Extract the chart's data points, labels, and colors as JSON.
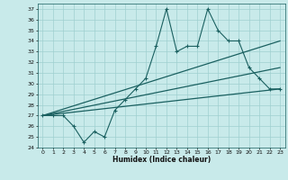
{
  "xlabel": "Humidex (Indice chaleur)",
  "bg_color": "#c8eaea",
  "grid_color": "#9fcfcf",
  "line_color": "#1a6060",
  "xlim": [
    -0.5,
    23.5
  ],
  "ylim": [
    24,
    37.5
  ],
  "yticks": [
    24,
    25,
    26,
    27,
    28,
    29,
    30,
    31,
    32,
    33,
    34,
    35,
    36,
    37
  ],
  "xticks": [
    0,
    1,
    2,
    3,
    4,
    5,
    6,
    7,
    8,
    9,
    10,
    11,
    12,
    13,
    14,
    15,
    16,
    17,
    18,
    19,
    20,
    21,
    22,
    23
  ],
  "series1_x": [
    0,
    1,
    2,
    3,
    4,
    5,
    6,
    7,
    8,
    9,
    10,
    11,
    12,
    13,
    14,
    15,
    16,
    17,
    18,
    19,
    20,
    21,
    22,
    23
  ],
  "series1_y": [
    27.0,
    27.0,
    27.0,
    26.0,
    24.5,
    25.5,
    25.0,
    27.5,
    28.5,
    29.5,
    30.5,
    33.5,
    37.0,
    33.0,
    33.5,
    33.5,
    37.0,
    35.0,
    34.0,
    34.0,
    31.5,
    30.5,
    29.5,
    29.5
  ],
  "series2_x": [
    0,
    23
  ],
  "series2_y": [
    27.0,
    29.5
  ],
  "series3_x": [
    0,
    23
  ],
  "series3_y": [
    27.0,
    34.0
  ],
  "series4_x": [
    0,
    23
  ],
  "series4_y": [
    27.0,
    31.5
  ]
}
